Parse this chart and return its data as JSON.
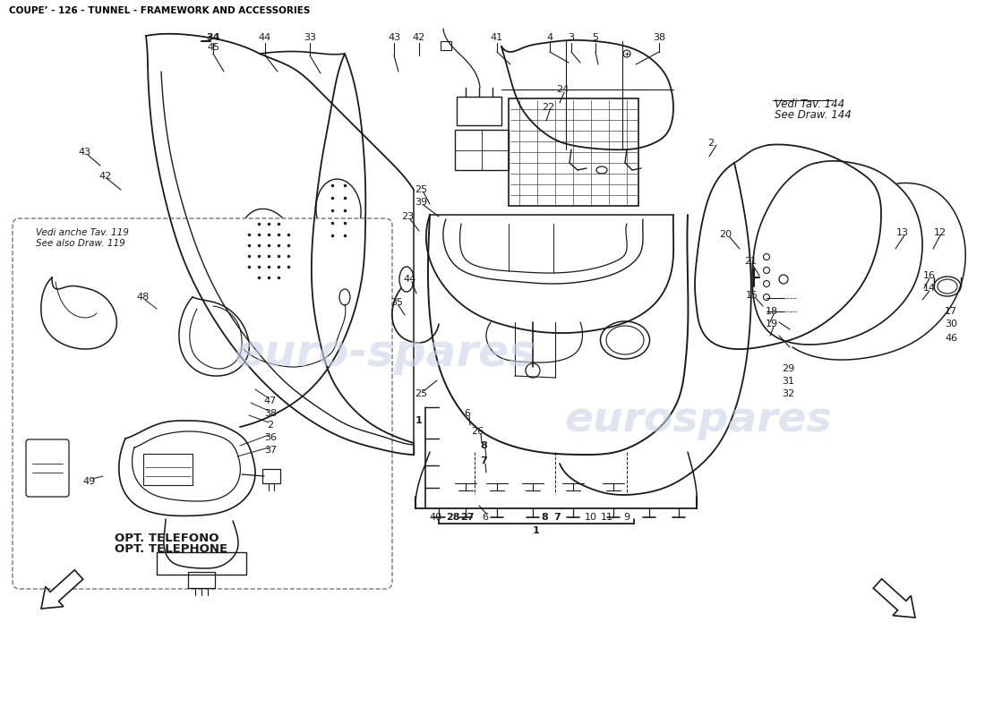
{
  "title": "COUPE’ - 126 - TUNNEL - FRAMEWORK AND ACCESSORIES",
  "title_fontsize": 7.5,
  "background_color": "#ffffff",
  "watermark_text1": "euro-spares",
  "watermark_text2": "eurospares",
  "watermark_color": "#c8d4e8",
  "watermark_fontsize": 36,
  "vedi_tav_text": "Vedi Tav. 144",
  "see_draw_text": "See Draw. 144",
  "vedi_anche_text": "Vedi anche Tav. 119",
  "see_also_text": "See also Draw. 119",
  "opt_text1": "OPT. TELEFONO",
  "opt_text2": "OPT. TELEPHONE",
  "line_color": "#1a1a1a",
  "label_fontsize": 8.0,
  "note_fontsize": 8.5
}
